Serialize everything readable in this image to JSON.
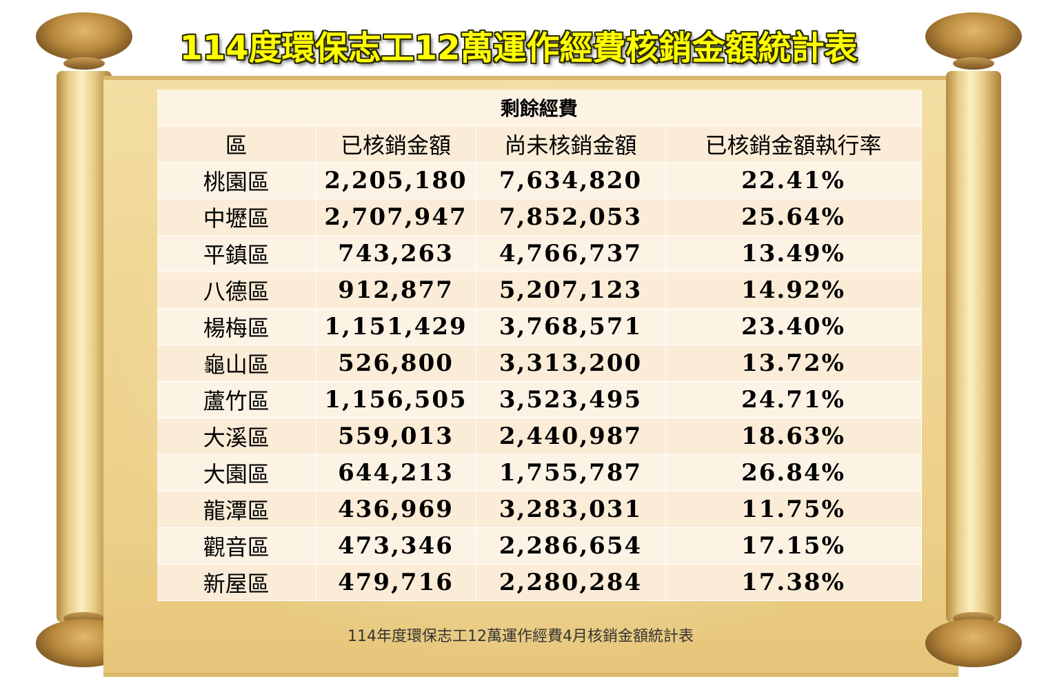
{
  "title": "114度環保志工12萬運作經費核銷金額統計表",
  "table": {
    "group_header": "剩餘經費",
    "columns": [
      "區",
      "已核銷金額",
      "尚未核銷金額",
      "已核銷金額執行率"
    ],
    "rows": [
      [
        "桃園區",
        "2,205,180",
        "7,634,820",
        "22.41%"
      ],
      [
        "中壢區",
        "2,707,947",
        "7,852,053",
        "25.64%"
      ],
      [
        "平鎮區",
        "743,263",
        "4,766,737",
        "13.49%"
      ],
      [
        "八德區",
        "912,877",
        "5,207,123",
        "14.92%"
      ],
      [
        "楊梅區",
        "1,151,429",
        "3,768,571",
        "23.40%"
      ],
      [
        "龜山區",
        "526,800",
        "3,313,200",
        "13.72%"
      ],
      [
        "蘆竹區",
        "1,156,505",
        "3,523,495",
        "24.71%"
      ],
      [
        "大溪區",
        "559,013",
        "2,440,987",
        "18.63%"
      ],
      [
        "大園區",
        "644,213",
        "1,755,787",
        "26.84%"
      ],
      [
        "龍潭區",
        "436,969",
        "3,283,031",
        "11.75%"
      ],
      [
        "觀音區",
        "473,346",
        "2,286,654",
        "17.15%"
      ],
      [
        "新屋區",
        "479,716",
        "2,280,284",
        "17.38%"
      ]
    ]
  },
  "caption": "114年度環保志工12萬運作經費4月核銷金額統計表",
  "colors": {
    "title_text": "#ffff00",
    "parchment": "#efd592",
    "table_row_light": "#fdf3e5",
    "table_row_dark": "#fbecd7"
  }
}
